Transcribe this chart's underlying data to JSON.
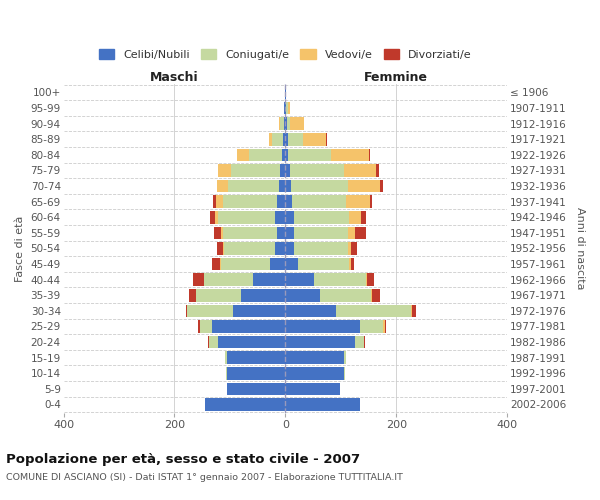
{
  "age_groups": [
    "0-4",
    "5-9",
    "10-14",
    "15-19",
    "20-24",
    "25-29",
    "30-34",
    "35-39",
    "40-44",
    "45-49",
    "50-54",
    "55-59",
    "60-64",
    "65-69",
    "70-74",
    "75-79",
    "80-84",
    "85-89",
    "90-94",
    "95-99",
    "100+"
  ],
  "birth_years": [
    "2002-2006",
    "1997-2001",
    "1992-1996",
    "1987-1991",
    "1982-1986",
    "1977-1981",
    "1972-1976",
    "1967-1971",
    "1962-1966",
    "1957-1961",
    "1952-1956",
    "1947-1951",
    "1942-1946",
    "1937-1941",
    "1932-1936",
    "1927-1931",
    "1922-1926",
    "1917-1921",
    "1912-1916",
    "1907-1911",
    "≤ 1906"
  ],
  "male_celibi": [
    145,
    105,
    105,
    105,
    122,
    132,
    95,
    80,
    58,
    28,
    18,
    15,
    18,
    15,
    12,
    10,
    6,
    4,
    3,
    2,
    1
  ],
  "male_coniugati": [
    0,
    0,
    2,
    3,
    15,
    22,
    82,
    82,
    88,
    88,
    93,
    98,
    103,
    98,
    92,
    88,
    60,
    20,
    6,
    1,
    0
  ],
  "male_vedovi": [
    0,
    0,
    0,
    0,
    1,
    0,
    0,
    0,
    0,
    2,
    2,
    3,
    6,
    12,
    20,
    24,
    22,
    6,
    3,
    0,
    0
  ],
  "male_divorziati": [
    0,
    0,
    0,
    0,
    1,
    3,
    3,
    12,
    20,
    14,
    11,
    12,
    9,
    6,
    0,
    0,
    0,
    0,
    0,
    0,
    0
  ],
  "female_celibi": [
    135,
    98,
    105,
    105,
    125,
    135,
    92,
    62,
    52,
    22,
    15,
    15,
    15,
    12,
    10,
    8,
    5,
    5,
    3,
    2,
    1
  ],
  "female_coniugati": [
    0,
    0,
    3,
    5,
    16,
    42,
    135,
    93,
    93,
    93,
    98,
    98,
    100,
    98,
    103,
    98,
    78,
    26,
    5,
    2,
    0
  ],
  "female_vedovi": [
    0,
    0,
    0,
    0,
    0,
    2,
    2,
    2,
    3,
    3,
    6,
    12,
    22,
    42,
    58,
    58,
    68,
    42,
    26,
    5,
    1
  ],
  "female_divorziati": [
    0,
    0,
    0,
    0,
    3,
    3,
    6,
    14,
    12,
    6,
    11,
    20,
    9,
    5,
    5,
    5,
    2,
    2,
    0,
    0,
    0
  ],
  "color_celibi": "#4472c4",
  "color_coniugati": "#c5d9a0",
  "color_vedovi": "#f5c36a",
  "color_divorziati": "#c0392b",
  "title": "Popolazione per età, sesso e stato civile - 2007",
  "subtitle": "COMUNE DI ASCIANO (SI) - Dati ISTAT 1° gennaio 2007 - Elaborazione TUTTITALIA.IT",
  "label_maschi": "Maschi",
  "label_femmine": "Femmine",
  "ylabel_left": "Fasce di età",
  "ylabel_right": "Anni di nascita",
  "xlim": 400,
  "bg_color": "#ffffff",
  "grid_color": "#cccccc",
  "legend_labels": [
    "Celibi/Nubili",
    "Coniugati/e",
    "Vedovi/e",
    "Divorziati/e"
  ]
}
